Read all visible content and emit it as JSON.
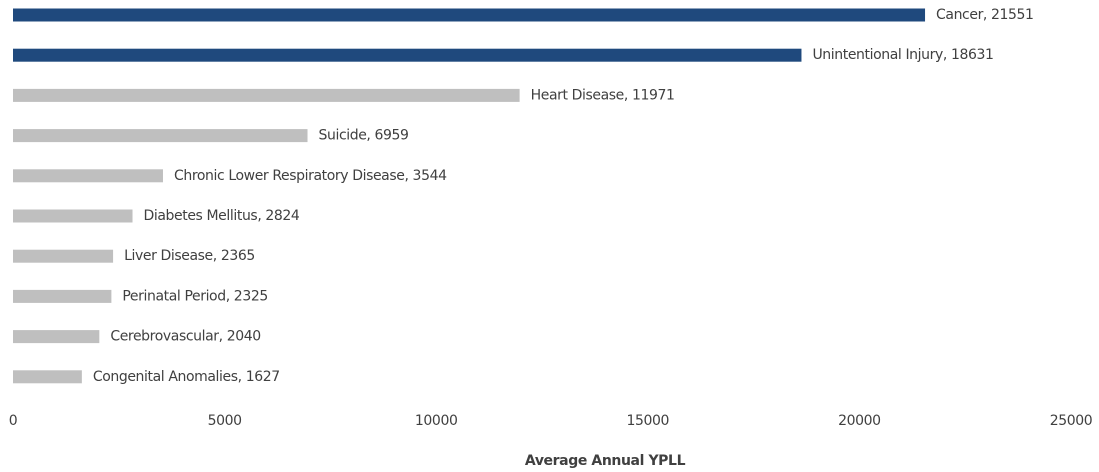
{
  "chart_data": {
    "type": "barh",
    "x_label": "Average Annual  YPLL",
    "values": [
      21551,
      18631,
      11971,
      6959,
      3544,
      2824,
      2365,
      2325,
      2040,
      1627
    ],
    "value_labels": [
      "Cancer, 21551",
      "Unintentional Injury, 18631",
      "Heart Disease, 11971",
      "Suicide, 6959",
      "Chronic Lower Respiratory Disease, 3544",
      "Diabetes Mellitus, 2824",
      "Liver Disease, 2365",
      "Perinatal Period, 2325",
      "Cerebrovascular, 2040",
      "Congenital Anomalies, 1627"
    ],
    "colors": [
      "#1f497d",
      "#1f497d",
      "#bfbfbf",
      "#bfbfbf",
      "#bfbfbf",
      "#bfbfbf",
      "#bfbfbf",
      "#bfbfbf",
      "#bfbfbf",
      "#bfbfbf"
    ],
    "xlim": [
      0,
      25000
    ],
    "xticks": [
      0,
      5000,
      10000,
      15000,
      20000,
      25000
    ],
    "grid": false
  }
}
